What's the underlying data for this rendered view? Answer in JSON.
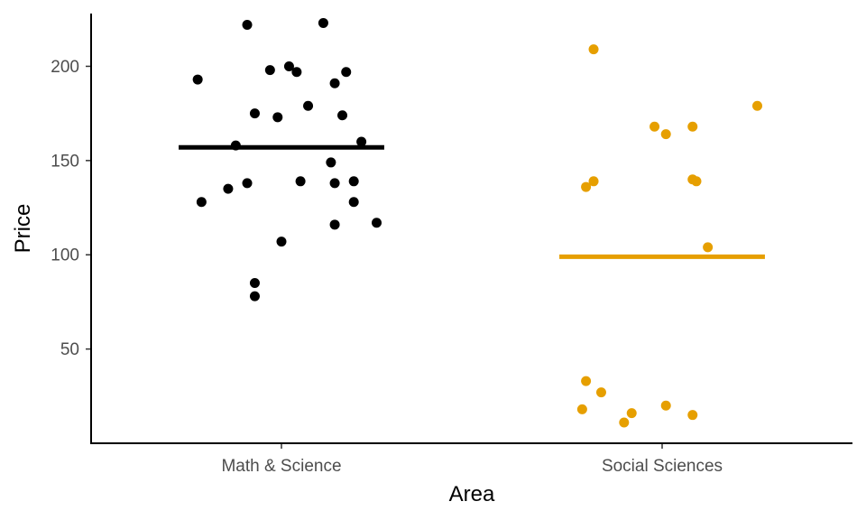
{
  "chart_data": {
    "type": "scatter",
    "title": "",
    "xlabel": "Area",
    "ylabel": "Price",
    "categories": [
      "Math & Science",
      "Social Sciences"
    ],
    "ylim": [
      0,
      228
    ],
    "yticks": [
      50,
      100,
      150,
      200
    ],
    "grid": false,
    "legend": "none",
    "jitter": true,
    "colors": {
      "Math & Science": "#000000",
      "Social Sciences": "#E69F00"
    },
    "series": [
      {
        "category": "Math & Science",
        "mean": 157,
        "points": [
          {
            "x": -0.22,
            "y": 193
          },
          {
            "x": -0.21,
            "y": 128
          },
          {
            "x": -0.14,
            "y": 135
          },
          {
            "x": -0.12,
            "y": 158
          },
          {
            "x": -0.09,
            "y": 222
          },
          {
            "x": -0.09,
            "y": 138
          },
          {
            "x": -0.07,
            "y": 175
          },
          {
            "x": -0.07,
            "y": 85
          },
          {
            "x": -0.07,
            "y": 78
          },
          {
            "x": -0.03,
            "y": 198
          },
          {
            "x": -0.01,
            "y": 173
          },
          {
            "x": 0.0,
            "y": 107
          },
          {
            "x": 0.02,
            "y": 200
          },
          {
            "x": 0.04,
            "y": 197
          },
          {
            "x": 0.05,
            "y": 139
          },
          {
            "x": 0.07,
            "y": 179
          },
          {
            "x": 0.11,
            "y": 223
          },
          {
            "x": 0.13,
            "y": 149
          },
          {
            "x": 0.14,
            "y": 116
          },
          {
            "x": 0.14,
            "y": 138
          },
          {
            "x": 0.14,
            "y": 191
          },
          {
            "x": 0.16,
            "y": 174
          },
          {
            "x": 0.17,
            "y": 197
          },
          {
            "x": 0.19,
            "y": 139
          },
          {
            "x": 0.19,
            "y": 128
          },
          {
            "x": 0.21,
            "y": 160
          },
          {
            "x": 0.25,
            "y": 117
          }
        ]
      },
      {
        "category": "Social Sciences",
        "mean": 99,
        "points": [
          {
            "x": -0.2,
            "y": 136
          },
          {
            "x": -0.2,
            "y": 33
          },
          {
            "x": -0.21,
            "y": 18
          },
          {
            "x": -0.18,
            "y": 209
          },
          {
            "x": -0.18,
            "y": 139
          },
          {
            "x": -0.16,
            "y": 27
          },
          {
            "x": -0.1,
            "y": 11
          },
          {
            "x": -0.08,
            "y": 16
          },
          {
            "x": -0.02,
            "y": 168
          },
          {
            "x": 0.01,
            "y": 164
          },
          {
            "x": 0.01,
            "y": 20
          },
          {
            "x": 0.08,
            "y": 168
          },
          {
            "x": 0.08,
            "y": 140
          },
          {
            "x": 0.08,
            "y": 15
          },
          {
            "x": 0.09,
            "y": 139
          },
          {
            "x": 0.12,
            "y": 104
          },
          {
            "x": 0.25,
            "y": 179
          }
        ]
      }
    ]
  }
}
